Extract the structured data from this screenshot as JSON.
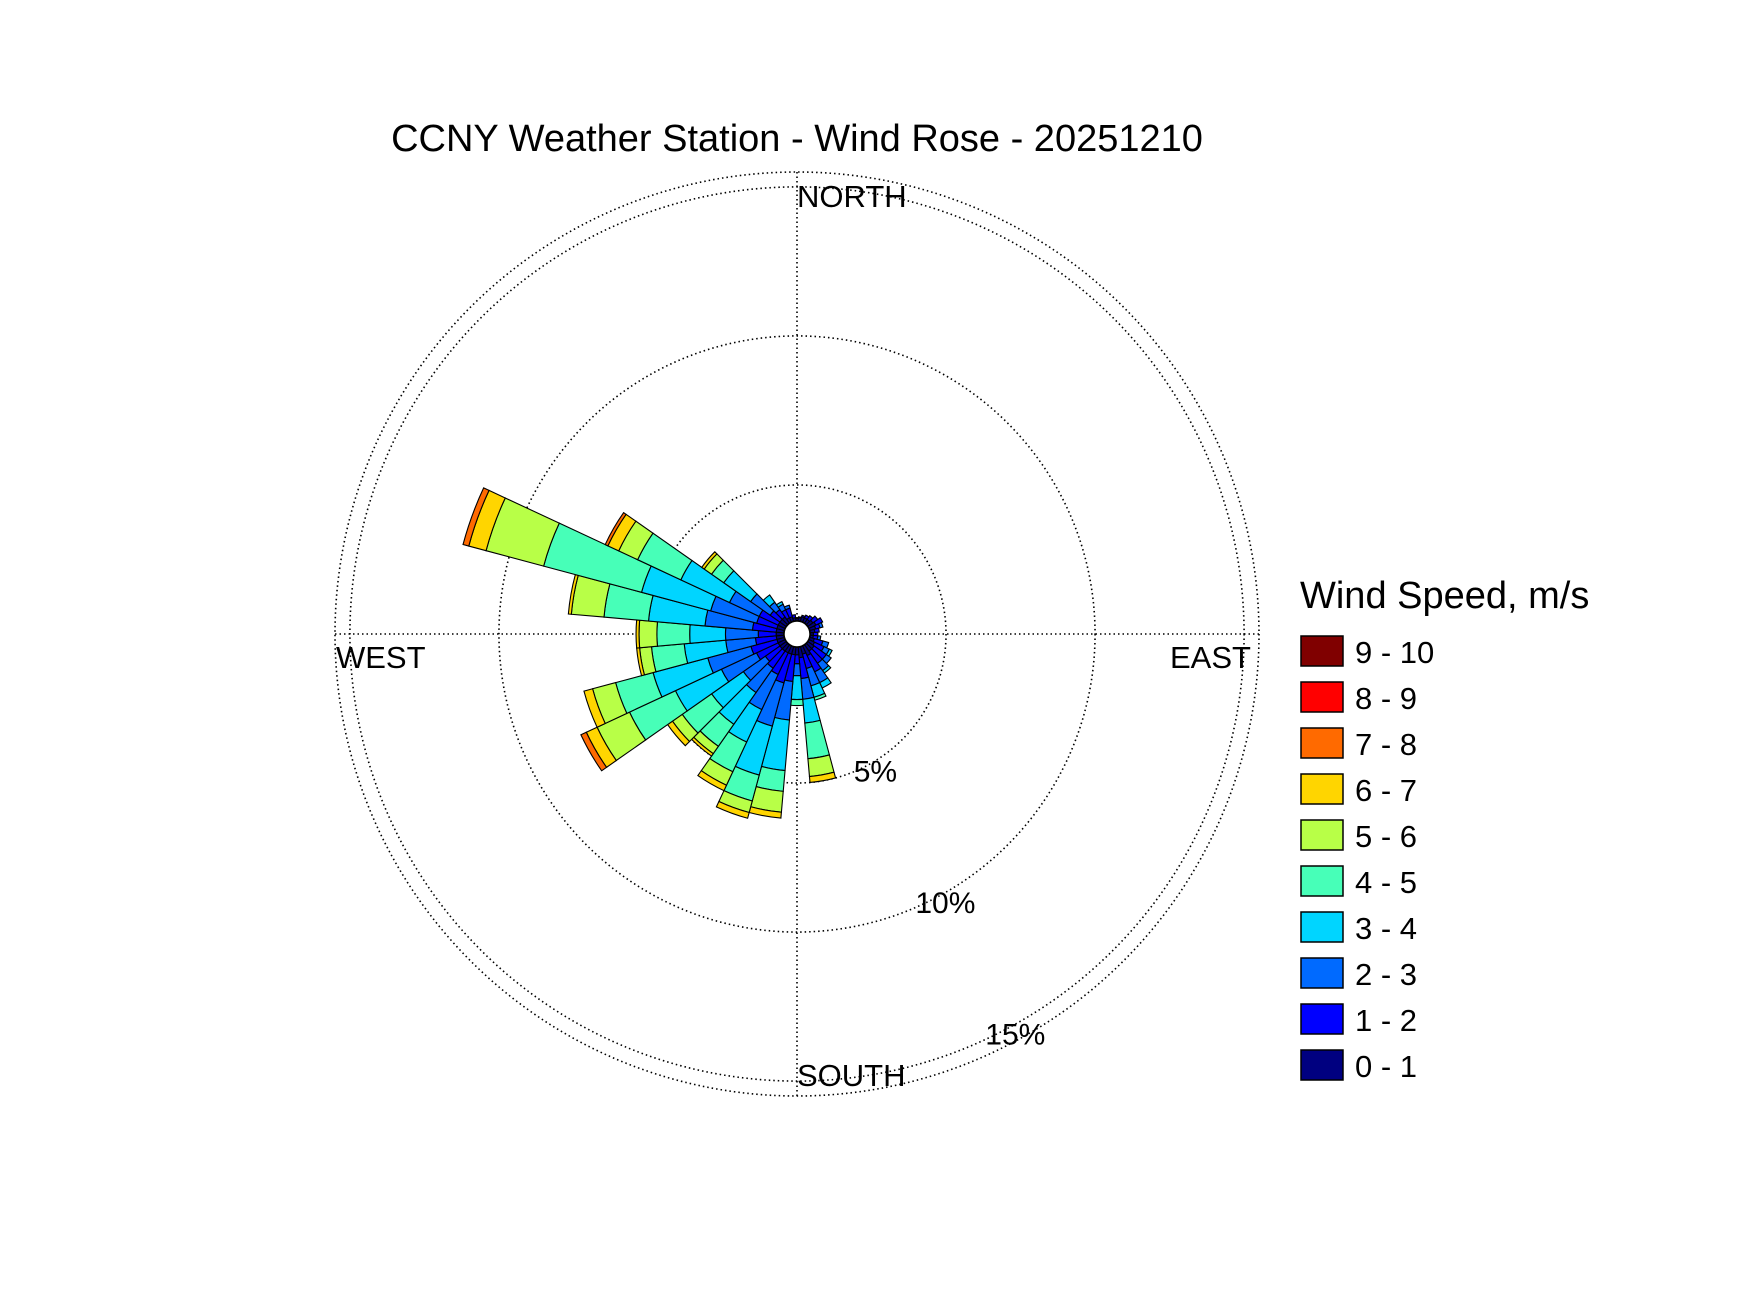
{
  "chart_data": {
    "type": "windrose",
    "title": "CCNY Weather Station - Wind Rose - 20251210",
    "direction_labels": {
      "north": "NORTH",
      "east": "EAST",
      "south": "SOUTH",
      "west": "WEST"
    },
    "ring_values": [
      5,
      10,
      15
    ],
    "ring_labels": [
      "5%",
      "10%",
      "15%"
    ],
    "rmax": 15.5,
    "calm_radius": 0.45,
    "legend": {
      "title": "Wind Speed, m/s",
      "bins": [
        {
          "label": "9 - 10",
          "color": "#800000"
        },
        {
          "label": "8 - 9",
          "color": "#ff0000"
        },
        {
          "label": "7 - 8",
          "color": "#ff6a00"
        },
        {
          "label": "6 - 7",
          "color": "#ffd500"
        },
        {
          "label": "5 - 6",
          "color": "#b8ff47"
        },
        {
          "label": "4 - 5",
          "color": "#47ffb8"
        },
        {
          "label": "3 - 4",
          "color": "#00d5ff"
        },
        {
          "label": "2 - 3",
          "color": "#006aff"
        },
        {
          "label": "1 - 2",
          "color": "#0000ff"
        },
        {
          "label": "0 - 1",
          "color": "#000080"
        }
      ]
    },
    "bin_colors_low_to_high": [
      "#000080",
      "#0000ff",
      "#006aff",
      "#00d5ff",
      "#47ffb8",
      "#b8ff47",
      "#ffd500",
      "#ff6a00",
      "#ff0000",
      "#800000"
    ],
    "sector_width_deg": 10,
    "sectors": [
      {
        "direction_deg": 0,
        "cumulative": [
          0.52,
          0.55
        ]
      },
      {
        "direction_deg": 10,
        "cumulative": [
          0.55,
          0.58
        ]
      },
      {
        "direction_deg": 20,
        "cumulative": [
          0.6,
          0.65
        ]
      },
      {
        "direction_deg": 30,
        "cumulative": [
          0.6,
          0.7
        ]
      },
      {
        "direction_deg": 40,
        "cumulative": [
          0.6,
          0.75
        ]
      },
      {
        "direction_deg": 50,
        "cumulative": [
          0.65,
          0.85
        ]
      },
      {
        "direction_deg": 60,
        "cumulative": [
          0.7,
          0.95
        ]
      },
      {
        "direction_deg": 70,
        "cumulative": [
          0.65,
          0.8,
          0.9
        ]
      },
      {
        "direction_deg": 80,
        "cumulative": [
          0.6,
          0.75
        ]
      },
      {
        "direction_deg": 90,
        "cumulative": [
          0.55,
          0.7
        ]
      },
      {
        "direction_deg": 100,
        "cumulative": [
          0.55,
          0.7,
          0.8
        ]
      },
      {
        "direction_deg": 110,
        "cumulative": [
          0.6,
          0.9,
          1.1
        ]
      },
      {
        "direction_deg": 120,
        "cumulative": [
          0.65,
          1.0,
          1.2,
          1.3
        ]
      },
      {
        "direction_deg": 130,
        "cumulative": [
          0.7,
          1.2,
          1.4
        ]
      },
      {
        "direction_deg": 140,
        "cumulative": [
          0.7,
          1.2,
          1.5,
          1.6
        ]
      },
      {
        "direction_deg": 150,
        "cumulative": [
          0.8,
          1.4,
          1.8,
          2.0
        ]
      },
      {
        "direction_deg": 160,
        "cumulative": [
          0.7,
          1.2,
          1.8,
          2.2,
          2.3
        ]
      },
      {
        "direction_deg": 170,
        "cumulative": [
          0.8,
          1.5,
          2.2,
          3.0,
          4.2,
          4.8,
          5.0
        ]
      },
      {
        "direction_deg": 180,
        "cumulative": [
          0.7,
          1.0,
          1.4,
          2.2,
          2.4
        ]
      },
      {
        "direction_deg": 190,
        "cumulative": [
          0.7,
          1.6,
          2.9,
          4.6,
          5.3,
          6.0,
          6.2
        ]
      },
      {
        "direction_deg": 200,
        "cumulative": [
          0.7,
          1.7,
          3.2,
          4.9,
          5.8,
          6.2,
          6.4
        ]
      },
      {
        "direction_deg": 210,
        "cumulative": [
          0.7,
          1.5,
          2.8,
          4.0,
          5.1,
          5.6,
          5.8
        ]
      },
      {
        "direction_deg": 220,
        "cumulative": [
          0.7,
          1.4,
          2.4,
          3.7,
          4.6,
          4.9,
          5.0
        ]
      },
      {
        "direction_deg": 230,
        "cumulative": [
          0.7,
          1.3,
          2.2,
          3.5,
          4.7,
          5.1,
          5.3
        ]
      },
      {
        "direction_deg": 240,
        "cumulative": [
          0.7,
          1.5,
          2.8,
          4.5,
          6.2,
          7.4,
          7.8,
          8.0
        ]
      },
      {
        "direction_deg": 250,
        "cumulative": [
          0.7,
          1.6,
          3.1,
          5.0,
          6.3,
          7.1,
          7.4
        ]
      },
      {
        "direction_deg": 260,
        "cumulative": [
          0.7,
          1.4,
          2.4,
          3.8,
          4.9,
          5.3,
          5.4
        ]
      },
      {
        "direction_deg": 270,
        "cumulative": [
          0.7,
          1.3,
          2.4,
          3.6,
          4.7,
          5.3,
          5.4
        ]
      },
      {
        "direction_deg": 280,
        "cumulative": [
          0.7,
          1.5,
          3.1,
          5.0,
          6.5,
          7.6,
          7.7
        ]
      },
      {
        "direction_deg": 290,
        "cumulative": [
          0.7,
          1.4,
          3.0,
          5.4,
          8.8,
          10.8,
          11.4,
          11.6
        ]
      },
      {
        "direction_deg": 300,
        "cumulative": [
          0.7,
          1.4,
          2.5,
          4.3,
          5.9,
          6.6,
          7.0,
          7.1
        ]
      },
      {
        "direction_deg": 310,
        "cumulative": [
          0.7,
          1.1,
          1.9,
          3.0,
          3.5,
          3.8,
          3.9
        ]
      },
      {
        "direction_deg": 320,
        "cumulative": [
          0.7,
          1.0,
          1.3,
          1.6
        ]
      },
      {
        "direction_deg": 330,
        "cumulative": [
          0.6,
          0.9,
          1.1,
          1.2
        ]
      },
      {
        "direction_deg": 340,
        "cumulative": [
          0.6,
          0.9,
          1.0
        ]
      },
      {
        "direction_deg": 350,
        "cumulative": [
          0.55,
          0.65
        ]
      }
    ]
  }
}
